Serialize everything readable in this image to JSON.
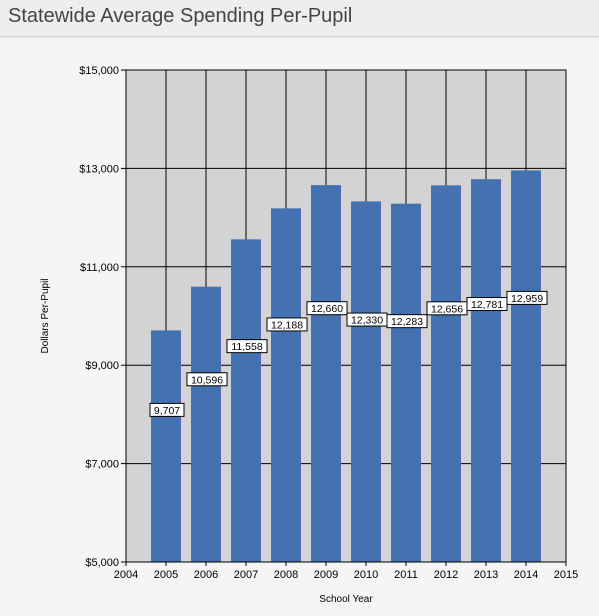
{
  "page": {
    "title": "Statewide Average Spending Per-Pupil"
  },
  "colors": {
    "bar": "#4472b0",
    "plot_background": "#d3d3d3",
    "grid": "#000000"
  },
  "chart_data": {
    "type": "bar",
    "title": "Statewide Average Spending Per-Pupil",
    "xlabel": "School Year",
    "ylabel": "Dollars Per-Pupil",
    "categories": [
      "2005",
      "2006",
      "2007",
      "2008",
      "2009",
      "2010",
      "2011",
      "2012",
      "2013",
      "2014"
    ],
    "x_values": [
      2005,
      2006,
      2007,
      2008,
      2009,
      2010,
      2011,
      2012,
      2013,
      2014
    ],
    "values": [
      9707,
      10596,
      11558,
      12188,
      12660,
      12330,
      12283,
      12656,
      12781,
      12959
    ],
    "data_labels": [
      "9,707",
      "10,596",
      "11,558",
      "12,188",
      "12,660",
      "12,330",
      "12,283",
      "12,656",
      "12,781",
      "12,959"
    ],
    "xlim": [
      2004,
      2015
    ],
    "ylim": [
      5000,
      15000
    ],
    "x_ticks": [
      "2004",
      "2005",
      "2006",
      "2007",
      "2008",
      "2009",
      "2010",
      "2011",
      "2012",
      "2013",
      "2014",
      "2015"
    ],
    "y_ticks": [
      "$5,000",
      "$7,000",
      "$9,000",
      "$11,000",
      "$13,000",
      "$15,000"
    ],
    "y_tick_values": [
      5000,
      7000,
      9000,
      11000,
      13000,
      15000
    ],
    "grid": true,
    "legend": "none"
  }
}
